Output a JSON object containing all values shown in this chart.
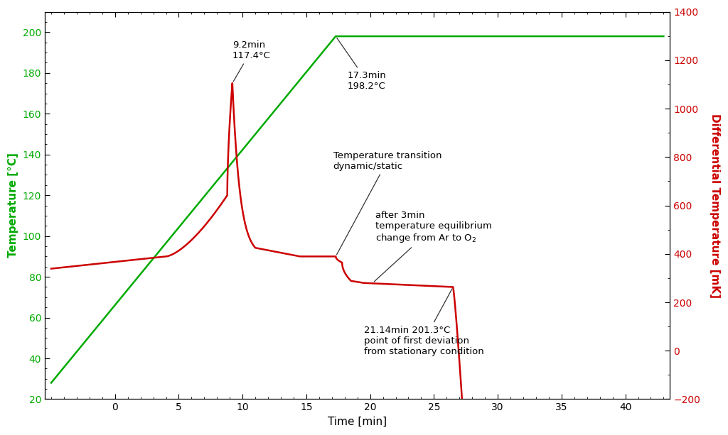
{
  "xlabel": "Time [min]",
  "ylabel_left": "Temperature [°C]",
  "ylabel_right": "Differential Temperature [mK]",
  "ylabel_left_color": "#00aa00",
  "ylabel_right_color": "#cc0000",
  "xlim": [
    -5.5,
    43.5
  ],
  "ylim_left": [
    20,
    210
  ],
  "ylim_right": [
    -200,
    1400
  ],
  "xticks": [
    0,
    5,
    10,
    15,
    20,
    25,
    30,
    35,
    40
  ],
  "yticks_left": [
    20,
    40,
    60,
    80,
    100,
    120,
    140,
    160,
    180,
    200
  ],
  "yticks_right": [
    -200,
    0,
    200,
    400,
    600,
    800,
    1000,
    1200,
    1400
  ],
  "bg_color": "#ffffff",
  "green_color": "#00aa00",
  "red_color": "#cc0000",
  "ann_color": "#333333",
  "ann_fontsize": 9.5
}
